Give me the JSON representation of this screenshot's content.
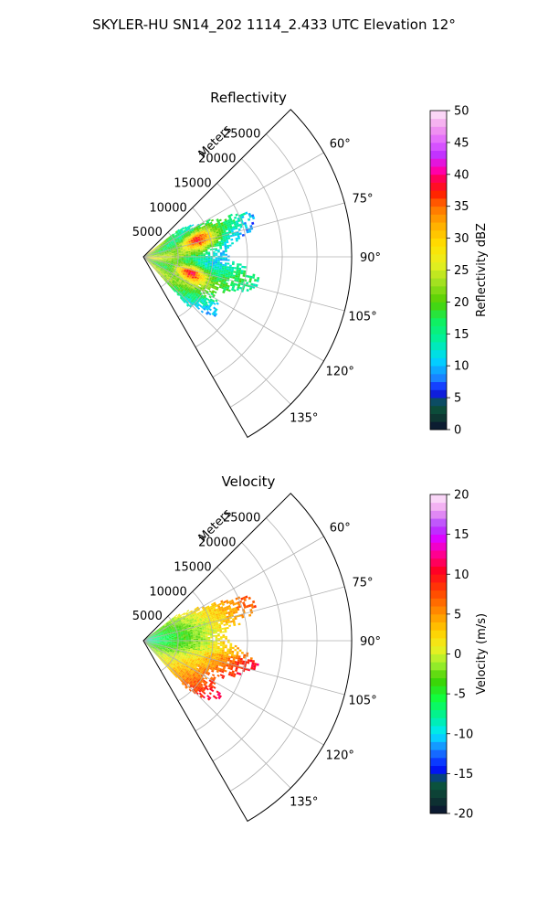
{
  "figure": {
    "title": "SKYLER-HU  SN14_202  1114_2.433 UTC Elevation 12°"
  },
  "chart_data": [
    {
      "type": "polar-sector",
      "title": "Reflectivity",
      "range_label": "Meters",
      "range_ticks": [
        5000,
        10000,
        15000,
        20000,
        25000
      ],
      "range_max_m": 30000,
      "azimuth_range_deg": [
        45,
        150
      ],
      "azimuth_ticks": [
        60,
        75,
        90,
        105,
        120,
        135
      ],
      "azimuth_tick_labels": [
        "60°",
        "75°",
        "90°",
        "105°",
        "120°",
        "135°"
      ],
      "grid": true,
      "colorbar": {
        "label": "Reflectivity dBZ",
        "min": 0,
        "max": 50,
        "ticks": [
          0,
          5,
          10,
          15,
          20,
          25,
          30,
          35,
          40,
          45,
          50
        ]
      },
      "field_summary": {
        "echo_extent_m": [
          0,
          17000
        ],
        "echo_azimuth_deg": [
          52,
          138
        ],
        "typical_dbz": 18,
        "cores": [
          {
            "az_deg": 108,
            "range_m": 7000,
            "dbz": 42
          },
          {
            "az_deg": 72,
            "range_m": 8000,
            "dbz": 37
          }
        ]
      }
    },
    {
      "type": "polar-sector",
      "title": "Velocity",
      "range_label": "Meters",
      "range_ticks": [
        5000,
        10000,
        15000,
        20000,
        25000
      ],
      "range_max_m": 30000,
      "azimuth_range_deg": [
        45,
        150
      ],
      "azimuth_ticks": [
        60,
        75,
        90,
        105,
        120,
        135
      ],
      "azimuth_tick_labels": [
        "60°",
        "75°",
        "90°",
        "105°",
        "120°",
        "135°"
      ],
      "grid": true,
      "colorbar": {
        "label": "Velocity (m/s)",
        "min": -20,
        "max": 20,
        "ticks": [
          -20,
          -15,
          -10,
          -5,
          0,
          5,
          10,
          15,
          20
        ]
      },
      "field_summary": {
        "echo_extent_m": [
          0,
          17000
        ],
        "echo_azimuth_deg": [
          52,
          138
        ],
        "velocity_range_ms": [
          -10,
          17
        ]
      }
    }
  ]
}
